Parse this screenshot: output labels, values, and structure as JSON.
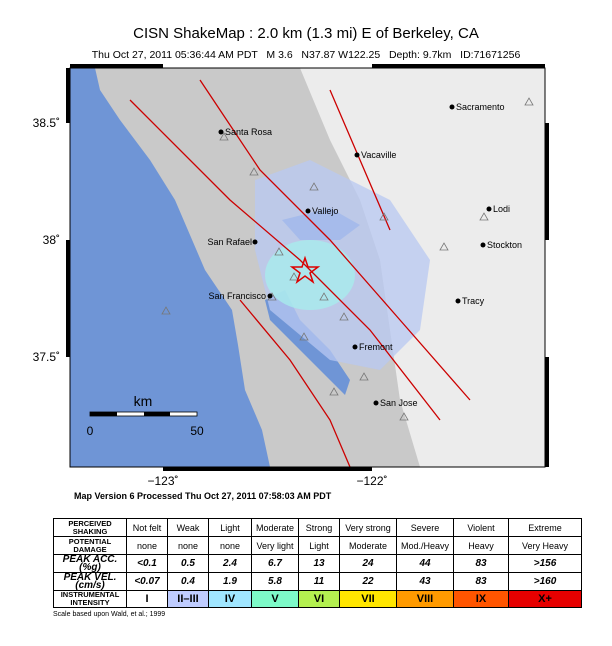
{
  "header": {
    "title": "CISN ShakeMap : 2.0 km (1.3 mi) E of Berkeley, CA",
    "subtitle": "Thu Oct 27, 2011 05:36:44 AM PDT   M 3.6   N37.87 W122.25   Depth: 9.7km   ID:71671256"
  },
  "map": {
    "lat_labels": [
      "38.5˚",
      "38˚",
      "37.5˚"
    ],
    "lon_labels": [
      "−123˚",
      "−122˚"
    ],
    "cities": [
      "Sacramento",
      "Santa Rosa",
      "Vacaville",
      "Lodi",
      "Vallejo",
      "San Rafael",
      "Stockton",
      "San Francisco",
      "Tracy",
      "Fremont",
      "San Jose"
    ],
    "scale": {
      "unit": "km",
      "labels": [
        "0",
        "50"
      ]
    }
  },
  "version": "Map Version 6 Processed Thu Oct 27, 2011 07:58:03 AM PDT",
  "table": {
    "rows": [
      [
        "PERCEIVED SHAKING",
        "Not felt",
        "Weak",
        "Light",
        "Moderate",
        "Strong",
        "Very strong",
        "Severe",
        "Violent",
        "Extreme"
      ],
      [
        "POTENTIAL DAMAGE",
        "none",
        "none",
        "none",
        "Very light",
        "Light",
        "Moderate",
        "Mod./Heavy",
        "Heavy",
        "Very Heavy"
      ],
      [
        "PEAK ACC.(%g)",
        "<0.1",
        "0.5",
        "2.4",
        "6.7",
        "13",
        "24",
        "44",
        "83",
        ">156"
      ],
      [
        "PEAK VEL.(cm/s)",
        "<0.07",
        "0.4",
        "1.9",
        "5.8",
        "11",
        "22",
        "43",
        "83",
        ">160"
      ],
      [
        "INSTRUMENTAL INTENSITY",
        "I",
        "II–III",
        "IV",
        "V",
        "VI",
        "VII",
        "VIII",
        "IX",
        "X+"
      ]
    ]
  },
  "footnote": "Scale based upon Wald, et al.; 1999"
}
